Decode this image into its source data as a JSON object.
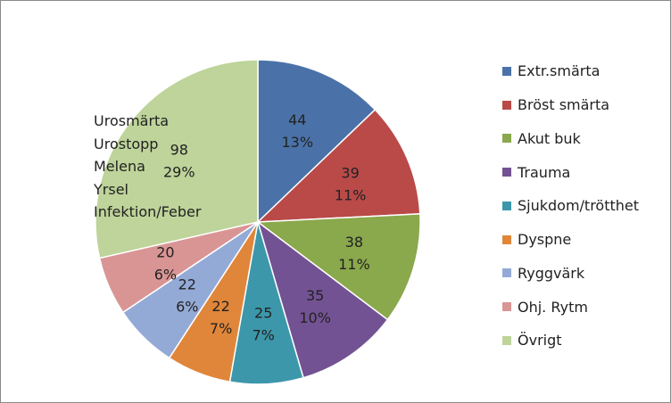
{
  "chart_data": {
    "type": "pie",
    "title": "",
    "categories": [
      "Extr.smärta",
      "Bröst smärta",
      "Akut buk",
      "Trauma",
      "Sjukdom/trötthet",
      "Dyspne",
      "Ryggvärk",
      "Ohj. Rytm",
      "Övrigt"
    ],
    "values": [
      44,
      39,
      38,
      35,
      25,
      22,
      22,
      20,
      98
    ],
    "percent_labels": [
      "13%",
      "11%",
      "11%",
      "10%",
      "7%",
      "7%",
      "6%",
      "6%",
      "29%"
    ],
    "colors": [
      "#4a72a8",
      "#b94a48",
      "#8aa84c",
      "#735293",
      "#3d97ab",
      "#e0863a",
      "#94aad6",
      "#d99594",
      "#bed49a"
    ],
    "legend_position": "right",
    "annotation": [
      "Urosmärta",
      "Urostopp",
      "Melena",
      "Yrsel",
      "Infektion/Feber"
    ]
  }
}
